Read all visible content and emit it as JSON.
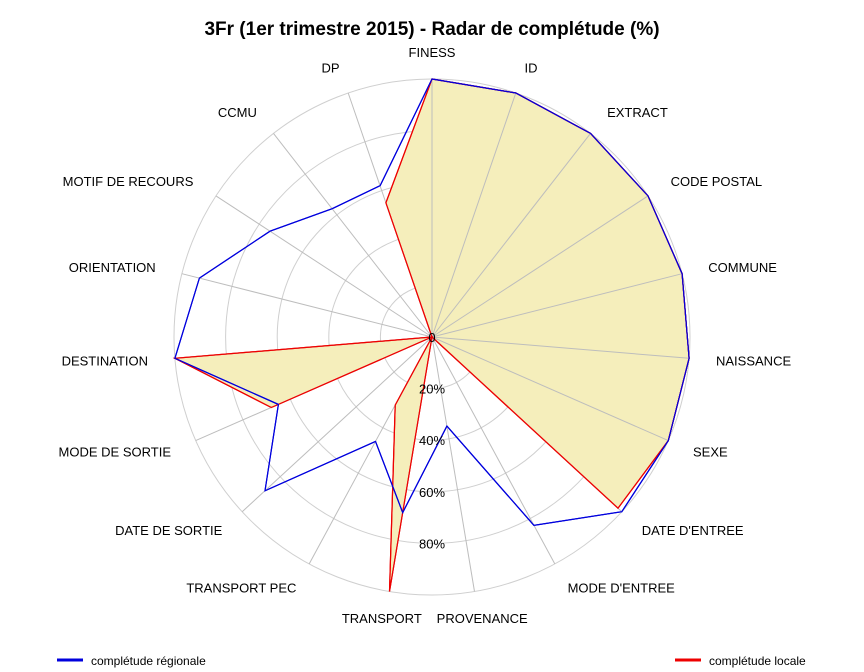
{
  "chart_data": {
    "type": "radar",
    "title": "3Fr (1er trimestre 2015) - Radar de complétude (%)",
    "axes": [
      "FINESS",
      "ID",
      "EXTRACT",
      "CODE POSTAL",
      "COMMUNE",
      "NAISSANCE",
      "SEXE",
      "DATE D'ENTREE",
      "MODE D'ENTREE",
      "PROVENANCE",
      "TRANSPORT",
      "TRANSPORT PEC",
      "DATE DE SORTIE",
      "MODE DE SORTIE",
      "DESTINATION",
      "ORIENTATION",
      "MOTIF DE RECOURS",
      "CCMU",
      "DP"
    ],
    "ticks": [
      {
        "value": 0,
        "label": "0"
      },
      {
        "value": 20,
        "label": "20%"
      },
      {
        "value": 40,
        "label": "40%"
      },
      {
        "value": 60,
        "label": "60%"
      },
      {
        "value": 80,
        "label": "80%"
      }
    ],
    "rlim": [
      0,
      100
    ],
    "series": [
      {
        "name": "complétude régionale",
        "color": "#0000dd",
        "values": [
          100,
          100,
          100,
          100,
          100,
          100,
          100,
          100,
          83,
          35,
          69,
          46,
          88,
          65,
          100,
          93,
          75,
          63,
          62
        ]
      },
      {
        "name": "complétude locale",
        "color": "#ee0000",
        "fill": "#f5eebb",
        "values": [
          100,
          100,
          100,
          100,
          100,
          100,
          100,
          98,
          0,
          0,
          100,
          30,
          0,
          68,
          100,
          0,
          0,
          0,
          55
        ]
      }
    ],
    "legend": "bottom"
  }
}
